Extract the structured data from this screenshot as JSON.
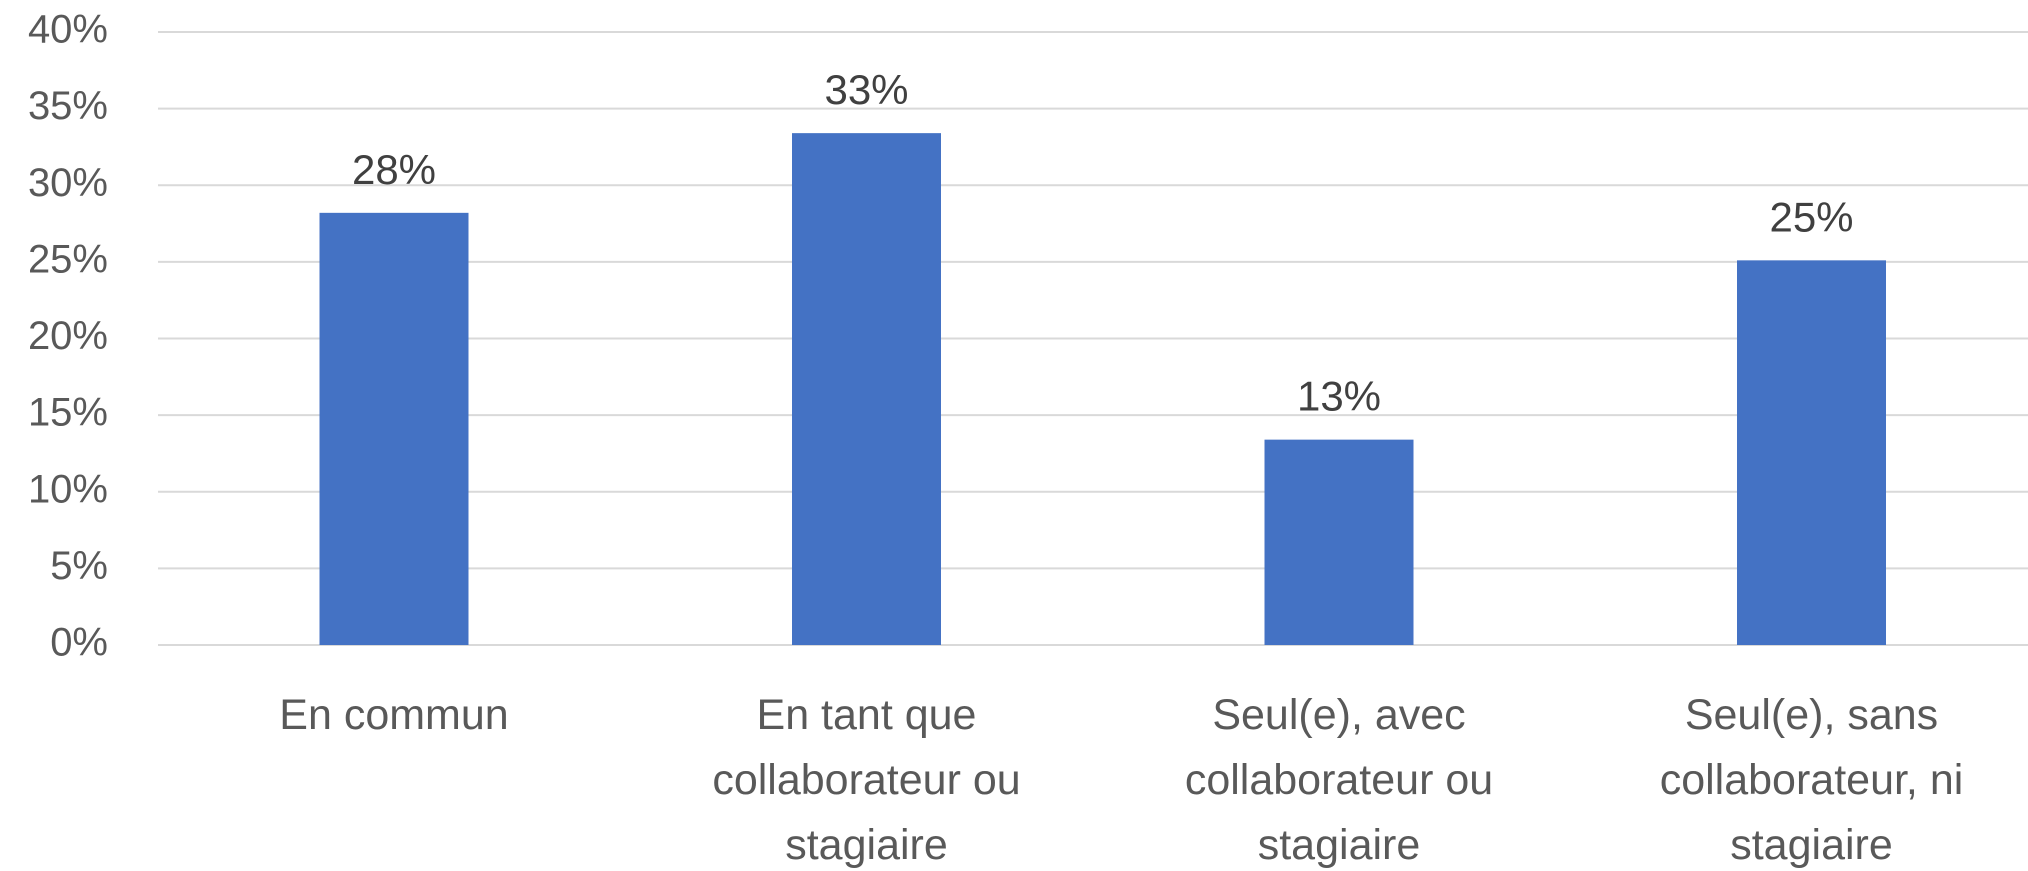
{
  "chart_data": {
    "type": "bar",
    "categories": [
      "En commun",
      "En tant que collaborateur ou stagiaire",
      "Seul(e), avec collaborateur ou stagiaire",
      "Seul(e), sans collaborateur, ni stagiaire"
    ],
    "values": [
      28.2,
      33.4,
      13.4,
      25.1
    ],
    "value_labels": [
      "28%",
      "33%",
      "13%",
      "25%"
    ],
    "color": "#4472c4",
    "ylim": [
      0,
      40
    ],
    "yticks": [
      {
        "value": 0,
        "label": "0%"
      },
      {
        "value": 5,
        "label": "5%"
      },
      {
        "value": 10,
        "label": "10%"
      },
      {
        "value": 15,
        "label": "15%"
      },
      {
        "value": 20,
        "label": "20%"
      },
      {
        "value": 25,
        "label": "25%"
      },
      {
        "value": 30,
        "label": "30%"
      },
      {
        "value": 35,
        "label": "35%"
      },
      {
        "value": 40,
        "label": "40%"
      }
    ],
    "grid": true
  }
}
